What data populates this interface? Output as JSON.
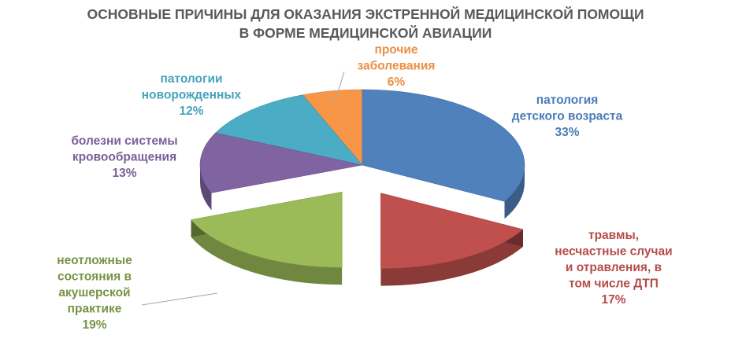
{
  "chart_data": {
    "type": "pie",
    "style": "3d-exploded",
    "title": "ОСНОВНЫЕ ПРИЧИНЫ ДЛЯ ОКАЗАНИЯ ЭКСТРЕННОЙ МЕДИЦИНСКОЙ ПОМОЩИ В ФОРМЕ МЕДИЦИНСКОЙ АВИАЦИИ",
    "title_lines": [
      "ОСНОВНЫЕ ПРИЧИНЫ ДЛЯ ОКАЗАНИЯ ЭКСТРЕННОЙ МЕДИЦИНСКОЙ ПОМОЩИ",
      "В ФОРМЕ МЕДИЦИНСКОЙ АВИАЦИИ"
    ],
    "legend": "none (data labels)",
    "slices": [
      {
        "label": "патология детского возраста",
        "label_lines": [
          "патология",
          "детского возраста"
        ],
        "value": 33,
        "value_text": "33%",
        "color": "#4F81BD",
        "exploded": false
      },
      {
        "label": "травмы, несчастные случаи и отравления, в том числе ДТП",
        "label_lines": [
          "травмы,",
          "несчастные случаи",
          "и отравления, в",
          "том числе ДТП"
        ],
        "value": 17,
        "value_text": "17%",
        "color": "#C0504D",
        "exploded": true
      },
      {
        "label": "неотложные состояния в акушерской практике",
        "label_lines": [
          "неотложные",
          "состояния в",
          "акушерской",
          "практике"
        ],
        "value": 19,
        "value_text": "19%",
        "color": "#9BBB59",
        "exploded": true
      },
      {
        "label": "болезни системы кровообращения",
        "label_lines": [
          "болезни системы",
          "кровообращения"
        ],
        "value": 13,
        "value_text": "13%",
        "color": "#8064A2",
        "exploded": false
      },
      {
        "label": "патологии новорожденных",
        "label_lines": [
          "патологии",
          "новорожденных"
        ],
        "value": 12,
        "value_text": "12%",
        "color": "#4BACC6",
        "exploded": false
      },
      {
        "label": "прочие заболевания",
        "label_lines": [
          "прочие",
          "заболевания"
        ],
        "value": 6,
        "value_text": "6%",
        "color": "#F79646",
        "exploded": false
      }
    ]
  }
}
